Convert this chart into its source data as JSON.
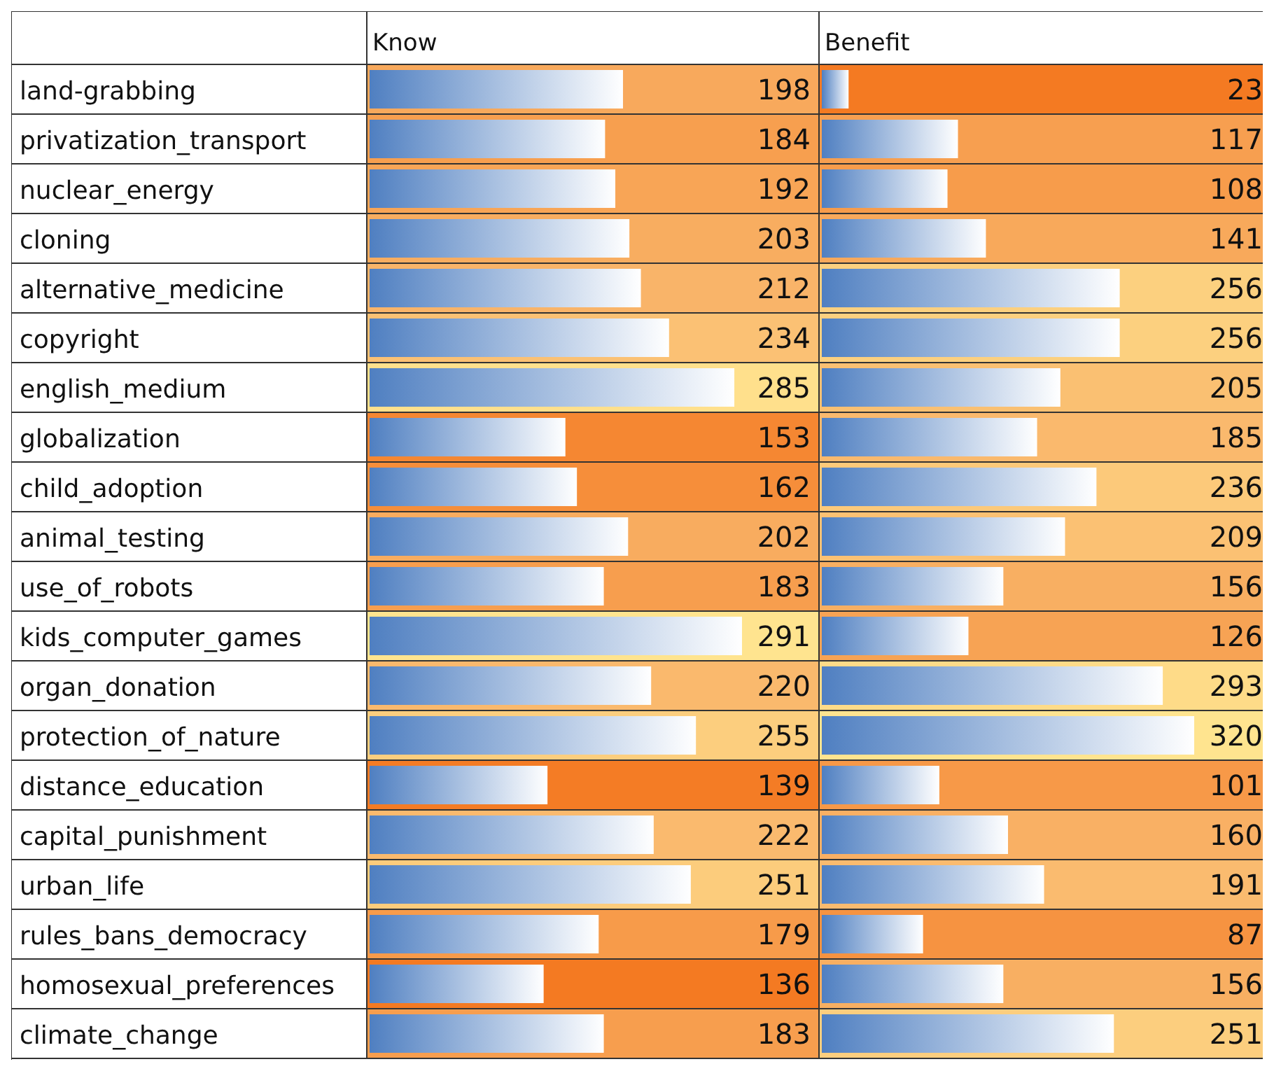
{
  "chart_data": [
    {
      "type": "bar",
      "orientation": "horizontal",
      "title": "Know",
      "color": "#4f7fc1",
      "data_labels": true,
      "tick_labels": "y",
      "categories": [
        "land-grabbing",
        "privatization_transport",
        "nuclear_energy",
        "cloning",
        "alternative_medicine",
        "copyright",
        "english_medium",
        "globalization",
        "child_adoption",
        "animal_testing",
        "use_of_robots",
        "kids_computer_games",
        "organ_donation",
        "protection_of_nature",
        "distance_education",
        "capital_punishment",
        "urban_life",
        "rules_bans_democracy",
        "homosexual_preferences",
        "climate_change"
      ],
      "values": [
        198,
        184,
        192,
        203,
        212,
        234,
        285,
        153,
        162,
        202,
        183,
        291,
        220,
        255,
        139,
        222,
        251,
        179,
        136,
        183
      ]
    },
    {
      "type": "bar",
      "orientation": "horizontal",
      "title": "Benefit",
      "color": "#4f7fc1",
      "data_labels": true,
      "tick_labels": false,
      "categories": [
        null,
        null,
        null,
        null,
        null,
        null,
        null,
        null,
        null,
        null,
        null,
        null,
        null,
        null,
        null,
        null,
        null,
        null,
        null,
        null
      ],
      "values": [
        23,
        117,
        108,
        141,
        256,
        256,
        205,
        185,
        236,
        209,
        156,
        126,
        293,
        320,
        101,
        160,
        191,
        87,
        156,
        251
      ]
    }
  ]
}
